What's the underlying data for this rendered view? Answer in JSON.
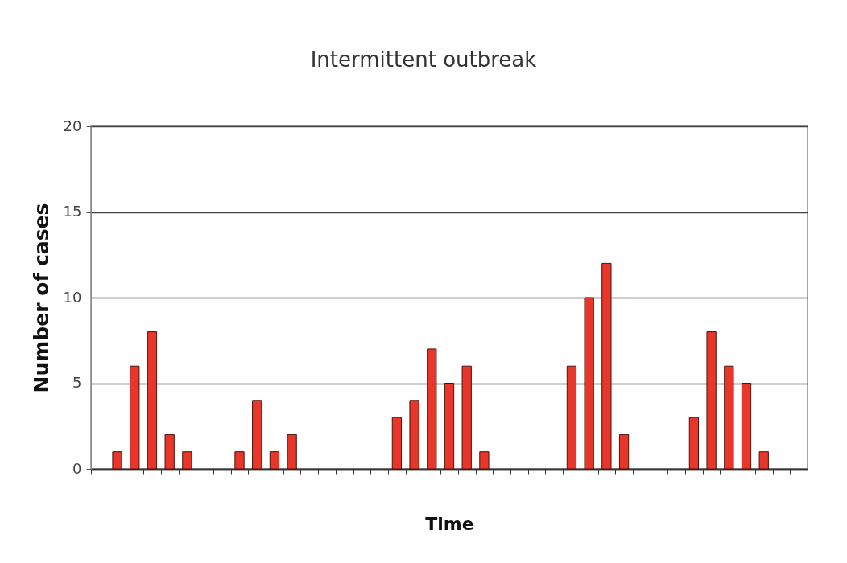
{
  "chart_data": {
    "type": "bar",
    "title": "Intermittent outbreak",
    "xlabel": "Time",
    "ylabel": "Number of cases",
    "categories": [
      null,
      null,
      null,
      null,
      null,
      null,
      null,
      null,
      null,
      null,
      null,
      null,
      null,
      null,
      null,
      null,
      null,
      null,
      null,
      null,
      null,
      null,
      null,
      null,
      null,
      null,
      null,
      null,
      null,
      null,
      null,
      null,
      null,
      null,
      null,
      null,
      null,
      null,
      null,
      null,
      null
    ],
    "values": [
      null,
      1,
      6,
      8,
      2,
      1,
      null,
      null,
      1,
      4,
      1,
      2,
      null,
      null,
      null,
      null,
      null,
      3,
      4,
      7,
      5,
      6,
      1,
      null,
      null,
      null,
      null,
      6,
      10,
      12,
      2,
      null,
      null,
      null,
      3,
      8,
      6,
      5,
      1,
      null,
      null
    ],
    "color": "#e8372a",
    "ylim": [
      0,
      20
    ],
    "yticks": [
      0,
      5,
      10,
      15,
      20
    ],
    "grid": "y",
    "tick_labels": "y"
  }
}
